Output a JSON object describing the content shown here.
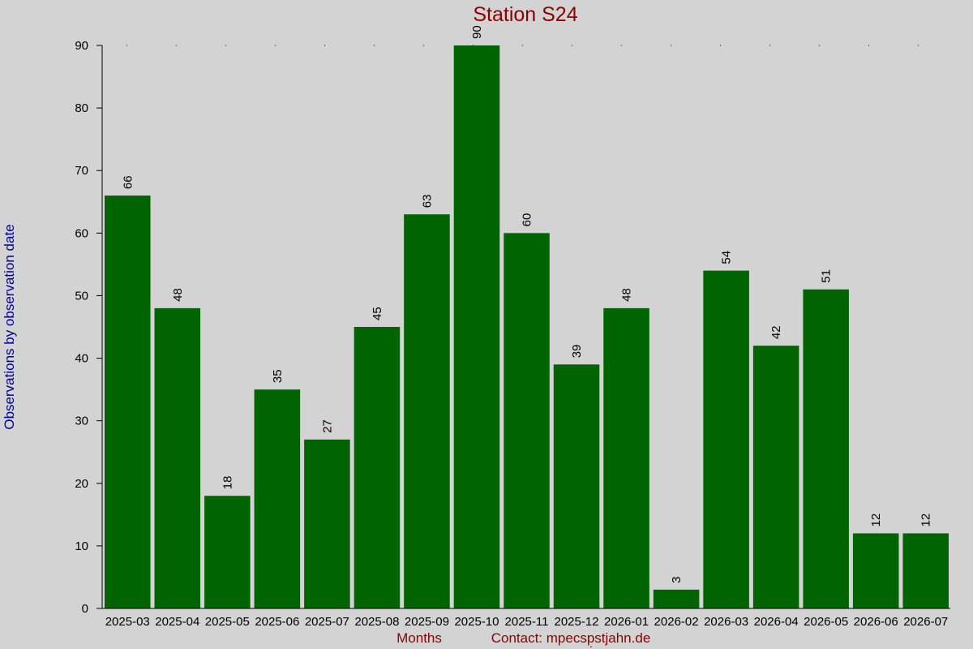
{
  "chart_data": {
    "type": "bar",
    "title": "Station S24",
    "xlabel": "Months",
    "ylabel": "Observations by observation date",
    "credit": "Contact: mpecsp̣stjahn.de",
    "categories": [
      "2025-03",
      "2025-04",
      "2025-05",
      "2025-06",
      "2025-07",
      "2025-08",
      "2025-09",
      "2025-10",
      "2025-11",
      "2025-12",
      "2026-01",
      "2026-02",
      "2026-03",
      "2026-04",
      "2026-05",
      "2026-06",
      "2026-07"
    ],
    "values": [
      66,
      48,
      18,
      35,
      27,
      45,
      63,
      90,
      60,
      39,
      48,
      3,
      54,
      42,
      51,
      12,
      12
    ],
    "ylim": [
      0,
      90
    ],
    "yticks": [
      0,
      10,
      20,
      30,
      40,
      50,
      60,
      70,
      80,
      90
    ],
    "grid": "dotted top line",
    "colors": {
      "background": "#d3d3d3",
      "bar": "#006400",
      "title": "#8b0000",
      "ylabel": "#00008b",
      "xlabel": "#8b0000",
      "text": "#000000"
    }
  }
}
